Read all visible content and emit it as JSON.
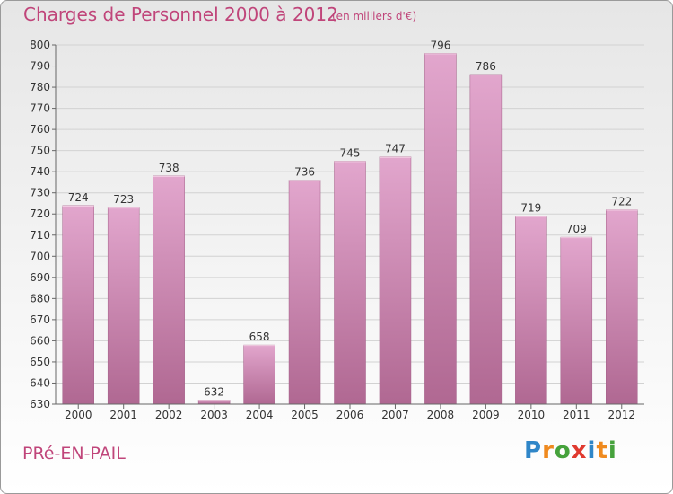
{
  "header": {
    "title": "Charges de Personnel 2000 à 2012",
    "subtitle": "(en milliers d'€)"
  },
  "footer": {
    "commune": "PRé-EN-PAIL",
    "logo_letters": [
      {
        "char": "P",
        "color": "#2f86c8"
      },
      {
        "char": "r",
        "color": "#ef8a1f"
      },
      {
        "char": "o",
        "color": "#46a23c"
      },
      {
        "char": "x",
        "color": "#e03a2f"
      },
      {
        "char": "i",
        "color": "#2f86c8"
      },
      {
        "char": "t",
        "color": "#ef8a1f"
      },
      {
        "char": "i",
        "color": "#46a23c"
      }
    ]
  },
  "colors": {
    "bar_top": "#e2a6cd",
    "bar_bottom": "#b06892",
    "text_accent": "#c0457a"
  },
  "chart_data": {
    "type": "bar",
    "categories": [
      "2000",
      "2001",
      "2002",
      "2003",
      "2004",
      "2005",
      "2006",
      "2007",
      "2008",
      "2009",
      "2010",
      "2011",
      "2012"
    ],
    "values": [
      724,
      723,
      738,
      632,
      658,
      736,
      745,
      747,
      796,
      786,
      719,
      709,
      722
    ],
    "title": "Charges de Personnel 2000 à 2012",
    "xlabel": "",
    "ylabel": "",
    "ylim": [
      630,
      800
    ],
    "yticks": [
      630,
      640,
      650,
      660,
      670,
      680,
      690,
      700,
      710,
      720,
      730,
      740,
      750,
      760,
      770,
      780,
      790,
      800
    ],
    "grid": true,
    "legend": "none"
  }
}
